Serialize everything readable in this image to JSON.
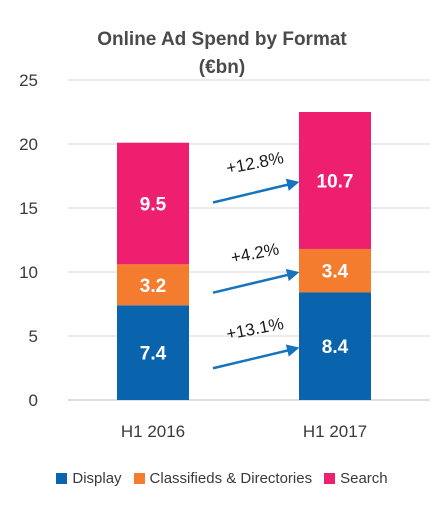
{
  "chart_data": {
    "type": "bar",
    "stacked": true,
    "title": "Online Ad Spend by Format",
    "subtitle": "(€bn)",
    "categories": [
      "H1 2016",
      "H1 2017"
    ],
    "series": [
      {
        "name": "Display",
        "values": [
          7.4,
          8.4
        ],
        "color": "#0a64ad"
      },
      {
        "name": "Classifieds & Directories",
        "values": [
          3.2,
          3.4
        ],
        "color": "#f47c2f"
      },
      {
        "name": "Search",
        "values": [
          9.5,
          10.7
        ],
        "color": "#ee1f6e"
      }
    ],
    "ylim": [
      0,
      25
    ],
    "yticks": [
      0,
      5,
      10,
      15,
      20,
      25
    ],
    "grid": true,
    "legend_position": "bottom",
    "annotations": [
      {
        "text": "+13.1%",
        "series": "Display"
      },
      {
        "text": "+4.2%",
        "series": "Classifieds & Directories"
      },
      {
        "text": "+12.8%",
        "series": "Search"
      }
    ],
    "arrow_color": "#1474bd"
  }
}
